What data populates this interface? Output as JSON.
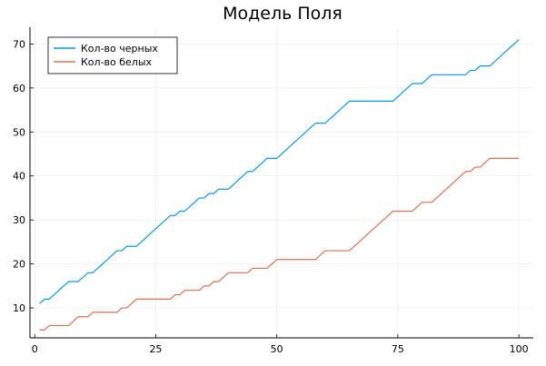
{
  "chart_data": {
    "type": "line",
    "title": "Модель Поля",
    "xlabel": "",
    "ylabel": "",
    "xlim": [
      -0.98,
      102.98
    ],
    "ylim": [
      3.2,
      73.8
    ],
    "xticks": [
      0,
      25,
      50,
      75,
      100
    ],
    "yticks": [
      10,
      20,
      30,
      40,
      50,
      60,
      70
    ],
    "grid": true,
    "legend_position": "top-left",
    "series": [
      {
        "name": "Кол-во черных",
        "color": "#009AF9",
        "points": [
          [
            1,
            11
          ],
          [
            2,
            12
          ],
          [
            3,
            12
          ],
          [
            4,
            13
          ],
          [
            5,
            14
          ],
          [
            6,
            15
          ],
          [
            7,
            16
          ],
          [
            8,
            16
          ],
          [
            9,
            16
          ],
          [
            10,
            17
          ],
          [
            11,
            18
          ],
          [
            12,
            18
          ],
          [
            13,
            19
          ],
          [
            14,
            20
          ],
          [
            15,
            21
          ],
          [
            16,
            22
          ],
          [
            17,
            23
          ],
          [
            18,
            23
          ],
          [
            19,
            24
          ],
          [
            20,
            24
          ],
          [
            21,
            24
          ],
          [
            22,
            25
          ],
          [
            23,
            26
          ],
          [
            24,
            27
          ],
          [
            25,
            28
          ],
          [
            26,
            29
          ],
          [
            27,
            30
          ],
          [
            28,
            31
          ],
          [
            29,
            31
          ],
          [
            30,
            32
          ],
          [
            31,
            32
          ],
          [
            32,
            33
          ],
          [
            33,
            34
          ],
          [
            34,
            35
          ],
          [
            35,
            35
          ],
          [
            36,
            36
          ],
          [
            37,
            36
          ],
          [
            38,
            37
          ],
          [
            39,
            37
          ],
          [
            40,
            37
          ],
          [
            41,
            38
          ],
          [
            42,
            39
          ],
          [
            43,
            40
          ],
          [
            44,
            41
          ],
          [
            45,
            41
          ],
          [
            46,
            42
          ],
          [
            47,
            43
          ],
          [
            48,
            44
          ],
          [
            49,
            44
          ],
          [
            50,
            44
          ],
          [
            51,
            45
          ],
          [
            52,
            46
          ],
          [
            53,
            47
          ],
          [
            54,
            48
          ],
          [
            55,
            49
          ],
          [
            56,
            50
          ],
          [
            57,
            51
          ],
          [
            58,
            52
          ],
          [
            59,
            52
          ],
          [
            60,
            52
          ],
          [
            61,
            53
          ],
          [
            62,
            54
          ],
          [
            63,
            55
          ],
          [
            64,
            56
          ],
          [
            65,
            57
          ],
          [
            66,
            57
          ],
          [
            67,
            57
          ],
          [
            68,
            57
          ],
          [
            69,
            57
          ],
          [
            70,
            57
          ],
          [
            71,
            57
          ],
          [
            72,
            57
          ],
          [
            73,
            57
          ],
          [
            74,
            57
          ],
          [
            75,
            58
          ],
          [
            76,
            59
          ],
          [
            77,
            60
          ],
          [
            78,
            61
          ],
          [
            79,
            61
          ],
          [
            80,
            61
          ],
          [
            81,
            62
          ],
          [
            82,
            63
          ],
          [
            83,
            63
          ],
          [
            84,
            63
          ],
          [
            85,
            63
          ],
          [
            86,
            63
          ],
          [
            87,
            63
          ],
          [
            88,
            63
          ],
          [
            89,
            63
          ],
          [
            90,
            64
          ],
          [
            91,
            64
          ],
          [
            92,
            65
          ],
          [
            93,
            65
          ],
          [
            94,
            65
          ],
          [
            95,
            66
          ],
          [
            96,
            67
          ],
          [
            97,
            68
          ],
          [
            98,
            69
          ],
          [
            99,
            70
          ],
          [
            100,
            71
          ]
        ]
      },
      {
        "name": "Кол-во белых",
        "color": "#E26F46",
        "points": [
          [
            1,
            5
          ],
          [
            2,
            5
          ],
          [
            3,
            6
          ],
          [
            4,
            6
          ],
          [
            5,
            6
          ],
          [
            6,
            6
          ],
          [
            7,
            6
          ],
          [
            8,
            7
          ],
          [
            9,
            8
          ],
          [
            10,
            8
          ],
          [
            11,
            8
          ],
          [
            12,
            9
          ],
          [
            13,
            9
          ],
          [
            14,
            9
          ],
          [
            15,
            9
          ],
          [
            16,
            9
          ],
          [
            17,
            9
          ],
          [
            18,
            10
          ],
          [
            19,
            10
          ],
          [
            20,
            11
          ],
          [
            21,
            12
          ],
          [
            22,
            12
          ],
          [
            23,
            12
          ],
          [
            24,
            12
          ],
          [
            25,
            12
          ],
          [
            26,
            12
          ],
          [
            27,
            12
          ],
          [
            28,
            12
          ],
          [
            29,
            13
          ],
          [
            30,
            13
          ],
          [
            31,
            14
          ],
          [
            32,
            14
          ],
          [
            33,
            14
          ],
          [
            34,
            14
          ],
          [
            35,
            15
          ],
          [
            36,
            15
          ],
          [
            37,
            16
          ],
          [
            38,
            16
          ],
          [
            39,
            17
          ],
          [
            40,
            18
          ],
          [
            41,
            18
          ],
          [
            42,
            18
          ],
          [
            43,
            18
          ],
          [
            44,
            18
          ],
          [
            45,
            19
          ],
          [
            46,
            19
          ],
          [
            47,
            19
          ],
          [
            48,
            19
          ],
          [
            49,
            20
          ],
          [
            50,
            21
          ],
          [
            51,
            21
          ],
          [
            52,
            21
          ],
          [
            53,
            21
          ],
          [
            54,
            21
          ],
          [
            55,
            21
          ],
          [
            56,
            21
          ],
          [
            57,
            21
          ],
          [
            58,
            21
          ],
          [
            59,
            22
          ],
          [
            60,
            23
          ],
          [
            61,
            23
          ],
          [
            62,
            23
          ],
          [
            63,
            23
          ],
          [
            64,
            23
          ],
          [
            65,
            23
          ],
          [
            66,
            24
          ],
          [
            67,
            25
          ],
          [
            68,
            26
          ],
          [
            69,
            27
          ],
          [
            70,
            28
          ],
          [
            71,
            29
          ],
          [
            72,
            30
          ],
          [
            73,
            31
          ],
          [
            74,
            32
          ],
          [
            75,
            32
          ],
          [
            76,
            32
          ],
          [
            77,
            32
          ],
          [
            78,
            32
          ],
          [
            79,
            33
          ],
          [
            80,
            34
          ],
          [
            81,
            34
          ],
          [
            82,
            34
          ],
          [
            83,
            35
          ],
          [
            84,
            36
          ],
          [
            85,
            37
          ],
          [
            86,
            38
          ],
          [
            87,
            39
          ],
          [
            88,
            40
          ],
          [
            89,
            41
          ],
          [
            90,
            41
          ],
          [
            91,
            42
          ],
          [
            92,
            42
          ],
          [
            93,
            43
          ],
          [
            94,
            44
          ],
          [
            95,
            44
          ],
          [
            96,
            44
          ],
          [
            97,
            44
          ],
          [
            98,
            44
          ],
          [
            99,
            44
          ],
          [
            100,
            44
          ]
        ]
      }
    ]
  }
}
